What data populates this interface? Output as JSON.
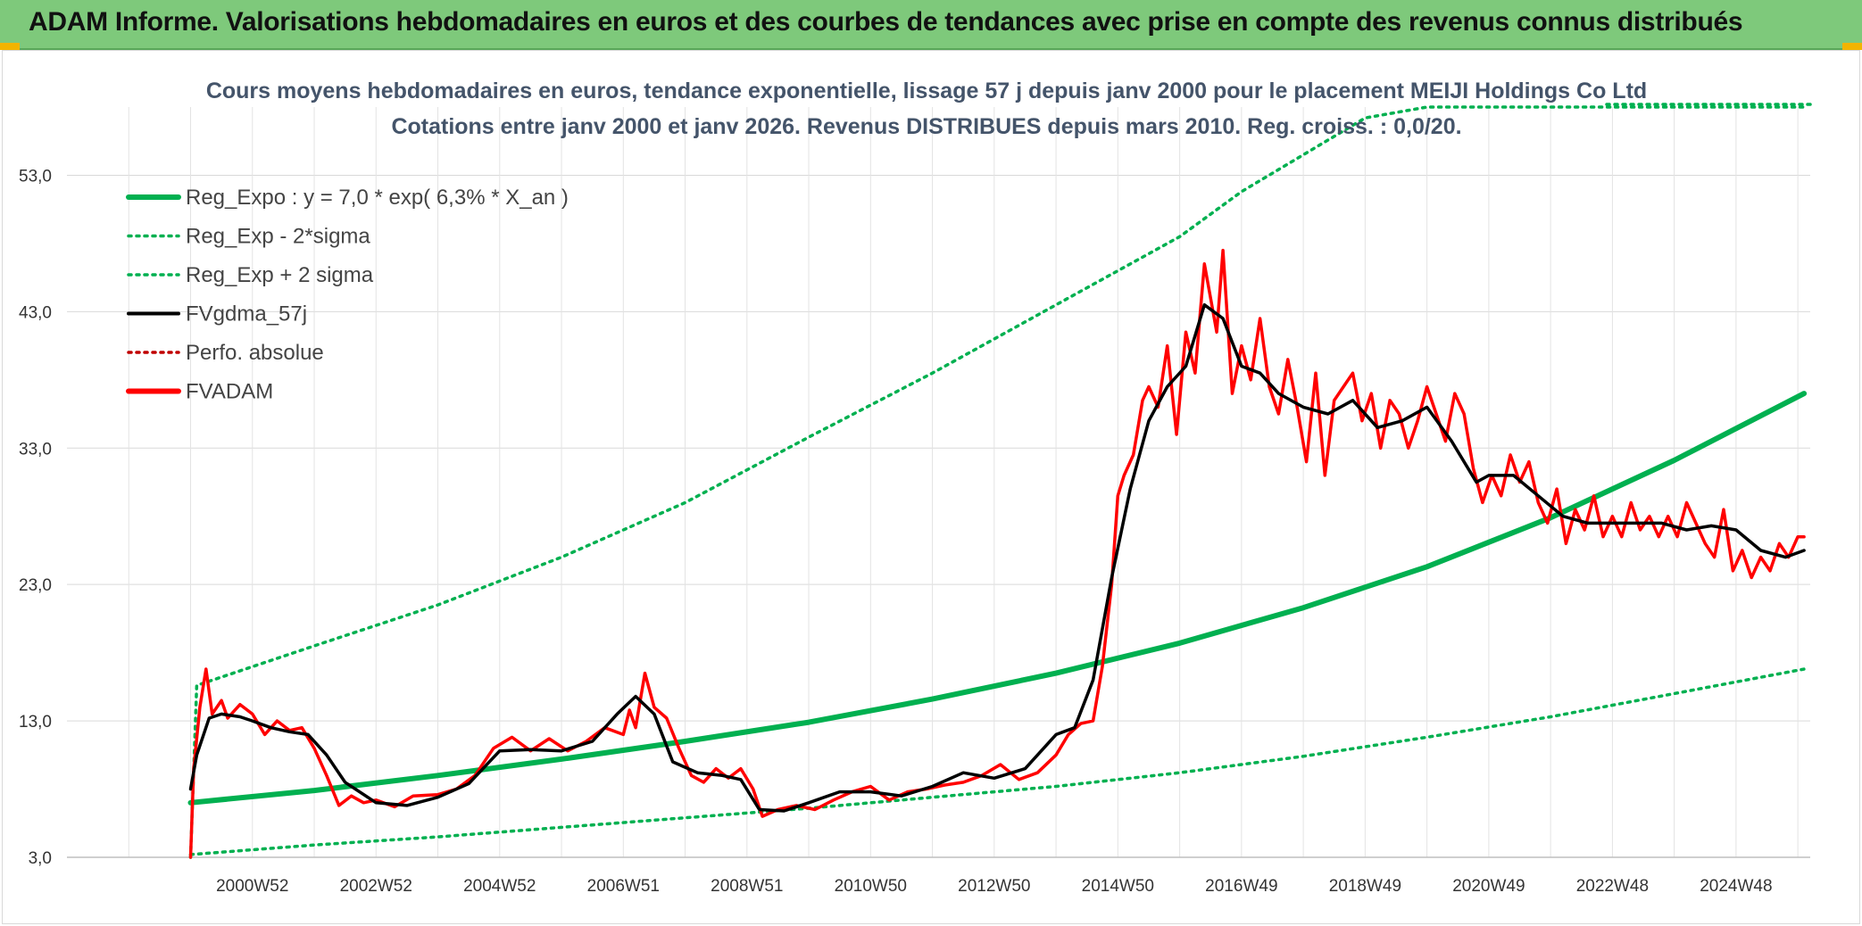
{
  "header": {
    "title": "ADAM Informe. Valorisations hebdomadaires en euros et des courbes de tendances avec prise en compte des revenus connus distribués"
  },
  "colors": {
    "banner": "#7ec97b",
    "reg": "#00b050",
    "fv": "#000000",
    "adam": "#ff0000",
    "perfo": "#c00000"
  },
  "chart_data": {
    "type": "line",
    "title": "Cours moyens hebdomadaires en euros, tendance exponentielle, lissage 57 j depuis janv 2000 pour le placement MEIJI Holdings Co Ltd",
    "subtitle": "Cotations entre janv 2000 et janv 2026. Revenus DISTRIBUES depuis mars 2010. Reg. croiss. : 0,0/20.",
    "xlabel": "",
    "ylabel": "",
    "ylim": [
      3,
      58
    ],
    "xlim": [
      1998.0,
      2026.2
    ],
    "yticks": [
      "53,0",
      "43,0",
      "33,0",
      "23,0",
      "13,0",
      "3,0"
    ],
    "ytick_values": [
      53,
      43,
      33,
      23,
      13,
      3
    ],
    "xticks": [
      "2000W52",
      "2002W52",
      "2004W52",
      "2006W51",
      "2008W51",
      "2010W50",
      "2012W50",
      "2014W50",
      "2016W49",
      "2018W49",
      "2020W49",
      "2022W48",
      "2024W48"
    ],
    "xtick_values": [
      2001.0,
      2003.0,
      2005.0,
      2007.0,
      2009.0,
      2011.0,
      2013.0,
      2015.0,
      2017.0,
      2019.0,
      2021.0,
      2023.0,
      2025.0
    ],
    "grid": true,
    "legend_position": "top-left",
    "legend": [
      {
        "key": "reg",
        "label": "Reg_Expo : y = 7,0 * exp( 6,3% *  X_an )",
        "style": "solid-thick",
        "color": "#00b050"
      },
      {
        "key": "reg_lo",
        "label": "Reg_Exp - 2*sigma",
        "style": "dotted",
        "color": "#00b050"
      },
      {
        "key": "reg_hi",
        "label": "Reg_Exp + 2 sigma",
        "style": "dotted",
        "color": "#00b050"
      },
      {
        "key": "fv",
        "label": "FVgdma_57j",
        "style": "solid",
        "color": "#000000"
      },
      {
        "key": "perfo",
        "label": "Perfo. absolue",
        "style": "dotted",
        "color": "#c00000"
      },
      {
        "key": "adam",
        "label": "FVADAM",
        "style": "solid-thick",
        "color": "#ff0000"
      }
    ],
    "series": [
      {
        "key": "reg",
        "name": "Reg_Expo : y = 7,0 * exp( 6,3% *  X_an )",
        "x": [
          2000.0,
          2002.0,
          2004.0,
          2006.0,
          2008.0,
          2010.0,
          2012.0,
          2014.0,
          2016.0,
          2018.0,
          2020.0,
          2022.0,
          2024.0,
          2026.1
        ],
        "y": [
          7.0,
          7.9,
          9.0,
          10.2,
          11.5,
          12.9,
          14.6,
          16.5,
          18.7,
          21.3,
          24.3,
          27.9,
          32.1,
          37.0
        ]
      },
      {
        "key": "reg_lo",
        "name": "Reg_Exp - 2*sigma",
        "x": [
          2000.0,
          2002.0,
          2004.0,
          2006.0,
          2008.0,
          2010.0,
          2012.0,
          2014.0,
          2016.0,
          2018.0,
          2020.0,
          2022.0,
          2024.0,
          2026.1
        ],
        "y": [
          3.2,
          3.9,
          4.5,
          5.2,
          5.9,
          6.6,
          7.4,
          8.2,
          9.2,
          10.4,
          11.8,
          13.3,
          15.0,
          16.8
        ]
      },
      {
        "key": "reg_hi",
        "name": "Reg_Exp + 2 sigma",
        "x": [
          2000.0,
          2000.1,
          2002.0,
          2004.0,
          2006.0,
          2008.0,
          2010.0,
          2012.0,
          2014.0,
          2016.0,
          2017.0,
          2018.0,
          2019.0,
          2020.0,
          2020.5,
          2026.1
        ],
        "y": [
          3.0,
          15.6,
          18.5,
          21.5,
          25.0,
          29.0,
          33.8,
          38.5,
          43.5,
          48.5,
          51.8,
          54.5,
          57.2,
          58.0,
          58.0,
          58.0
        ]
      },
      {
        "key": "fv",
        "name": "FVgdma_57j",
        "x": [
          2000.0,
          2000.1,
          2000.3,
          2000.5,
          2000.8,
          2001.0,
          2001.3,
          2001.6,
          2001.9,
          2002.2,
          2002.5,
          2003.0,
          2003.5,
          2004.0,
          2004.5,
          2005.0,
          2005.5,
          2006.0,
          2006.5,
          2006.9,
          2007.2,
          2007.5,
          2007.8,
          2008.2,
          2008.6,
          2008.9,
          2009.2,
          2009.6,
          2010.0,
          2010.5,
          2011.0,
          2011.5,
          2012.0,
          2012.5,
          2013.0,
          2013.5,
          2014.0,
          2014.3,
          2014.6,
          2014.9,
          2015.2,
          2015.5,
          2015.8,
          2016.1,
          2016.4,
          2016.7,
          2017.0,
          2017.3,
          2017.6,
          2018.0,
          2018.4,
          2018.8,
          2019.2,
          2019.6,
          2020.0,
          2020.4,
          2020.8,
          2021.0,
          2021.4,
          2021.8,
          2022.2,
          2022.6,
          2023.0,
          2023.4,
          2023.8,
          2024.2,
          2024.6,
          2025.0,
          2025.4,
          2025.8,
          2026.1
        ],
        "y": [
          8.0,
          10.5,
          13.2,
          13.5,
          13.3,
          13.0,
          12.5,
          12.2,
          12.0,
          10.5,
          8.5,
          7.0,
          6.8,
          7.4,
          8.4,
          10.8,
          10.9,
          10.8,
          11.5,
          13.5,
          14.8,
          13.5,
          10.0,
          9.2,
          9.0,
          8.7,
          6.5,
          6.4,
          7.0,
          7.8,
          7.8,
          7.5,
          8.2,
          9.2,
          8.8,
          9.5,
          12.0,
          12.5,
          16.0,
          23.5,
          30.0,
          35.0,
          37.5,
          39.0,
          43.5,
          42.5,
          39.0,
          38.5,
          37.0,
          36.0,
          35.5,
          36.5,
          34.5,
          35.0,
          36.0,
          33.5,
          30.5,
          31.0,
          31.0,
          29.5,
          28.0,
          27.5,
          27.5,
          27.5,
          27.5,
          27.0,
          27.3,
          27.0,
          25.5,
          25.0,
          25.5
        ]
      },
      {
        "key": "adam",
        "name": "FVADAM",
        "x": [
          2000.0,
          2000.05,
          2000.15,
          2000.25,
          2000.35,
          2000.5,
          2000.6,
          2000.8,
          2001.0,
          2001.2,
          2001.4,
          2001.6,
          2001.8,
          2002.0,
          2002.2,
          2002.4,
          2002.6,
          2002.8,
          2003.0,
          2003.3,
          2003.6,
          2004.0,
          2004.3,
          2004.6,
          2004.9,
          2005.2,
          2005.5,
          2005.8,
          2006.1,
          2006.4,
          2006.7,
          2007.0,
          2007.1,
          2007.2,
          2007.35,
          2007.5,
          2007.7,
          2007.9,
          2008.1,
          2008.3,
          2008.5,
          2008.7,
          2008.9,
          2009.1,
          2009.25,
          2009.5,
          2009.8,
          2010.1,
          2010.4,
          2010.7,
          2011.0,
          2011.3,
          2011.6,
          2011.9,
          2012.2,
          2012.5,
          2012.8,
          2013.1,
          2013.4,
          2013.7,
          2014.0,
          2014.2,
          2014.4,
          2014.6,
          2014.75,
          2014.9,
          2015.0,
          2015.1,
          2015.25,
          2015.4,
          2015.5,
          2015.65,
          2015.8,
          2015.95,
          2016.1,
          2016.25,
          2016.4,
          2016.5,
          2016.6,
          2016.7,
          2016.85,
          2017.0,
          2017.15,
          2017.3,
          2017.45,
          2017.6,
          2017.75,
          2017.9,
          2018.05,
          2018.2,
          2018.35,
          2018.5,
          2018.65,
          2018.8,
          2018.95,
          2019.1,
          2019.25,
          2019.4,
          2019.55,
          2019.7,
          2019.85,
          2020.0,
          2020.15,
          2020.3,
          2020.45,
          2020.6,
          2020.75,
          2020.9,
          2021.05,
          2021.2,
          2021.35,
          2021.5,
          2021.65,
          2021.8,
          2021.95,
          2022.1,
          2022.25,
          2022.4,
          2022.55,
          2022.7,
          2022.85,
          2023.0,
          2023.15,
          2023.3,
          2023.45,
          2023.6,
          2023.75,
          2023.9,
          2024.05,
          2024.2,
          2024.35,
          2024.5,
          2024.65,
          2024.8,
          2024.95,
          2025.1,
          2025.25,
          2025.4,
          2025.55,
          2025.7,
          2025.85,
          2026.0,
          2026.1
        ],
        "y": [
          3.0,
          9.5,
          14.0,
          16.8,
          13.5,
          14.5,
          13.2,
          14.2,
          13.5,
          12.0,
          13.0,
          12.3,
          12.5,
          11.0,
          9.0,
          6.8,
          7.5,
          7.0,
          7.2,
          6.7,
          7.5,
          7.6,
          8.0,
          9.0,
          11.0,
          11.8,
          10.8,
          11.7,
          10.8,
          11.5,
          12.5,
          12.0,
          13.8,
          12.5,
          16.5,
          14.0,
          13.2,
          11.0,
          9.0,
          8.5,
          9.5,
          8.8,
          9.5,
          8.0,
          6.0,
          6.5,
          6.8,
          6.5,
          7.2,
          7.8,
          8.2,
          7.2,
          7.8,
          8.0,
          8.3,
          8.5,
          9.0,
          9.8,
          8.7,
          9.2,
          10.5,
          12.0,
          12.8,
          13.0,
          17.0,
          23.0,
          29.5,
          31.0,
          32.5,
          36.5,
          37.5,
          36.0,
          40.5,
          34.0,
          41.5,
          38.5,
          46.5,
          44.0,
          41.5,
          47.5,
          37.0,
          40.5,
          38.0,
          42.5,
          37.5,
          35.5,
          39.5,
          36.0,
          32.0,
          38.5,
          31.0,
          36.5,
          37.5,
          38.5,
          35.0,
          37.0,
          33.0,
          36.5,
          35.5,
          33.0,
          35.0,
          37.5,
          35.5,
          33.5,
          37.0,
          35.5,
          31.5,
          29.0,
          31.0,
          29.5,
          32.5,
          30.5,
          32.0,
          29.0,
          27.5,
          30.0,
          26.0,
          28.5,
          27.0,
          29.5,
          26.5,
          28.0,
          26.5,
          29.0,
          27.0,
          28.0,
          26.5,
          28.0,
          26.5,
          29.0,
          27.5,
          26.0,
          25.0,
          28.5,
          24.0,
          25.5,
          23.5,
          25.0,
          24.0,
          26.0,
          25.0,
          26.5,
          26.5
        ]
      }
    ]
  }
}
